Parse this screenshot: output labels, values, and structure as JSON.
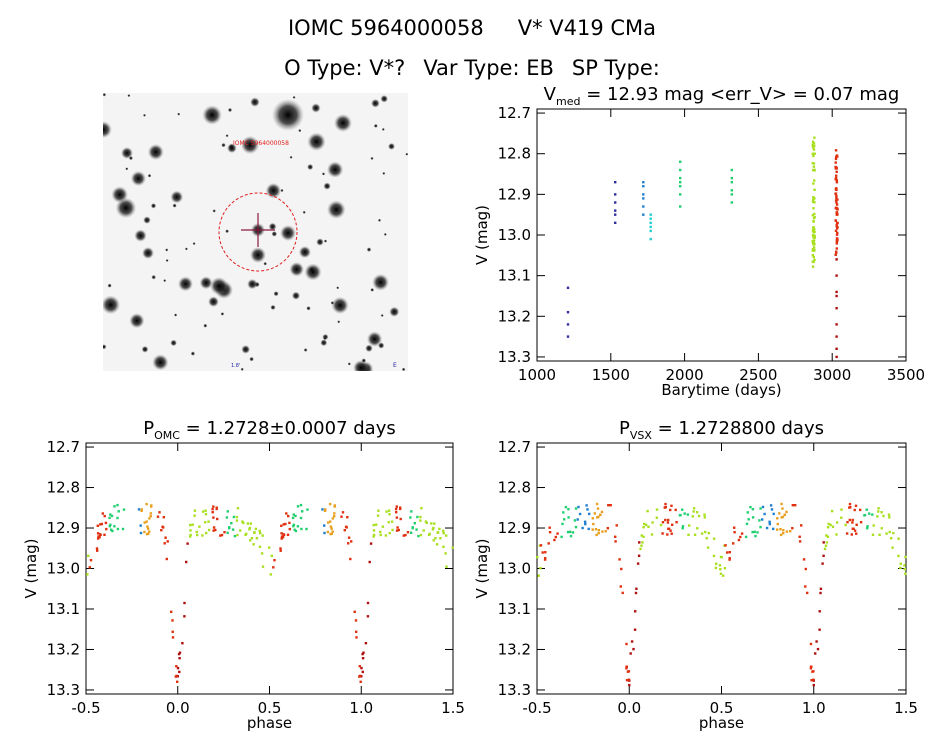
{
  "header": {
    "ids": [
      "IOMC 5964000058",
      "V* V419 CMa"
    ],
    "types": [
      "O Type: V*?",
      "Var Type: EB",
      "SP Type:"
    ]
  },
  "colors": {
    "c1": "#2f2f9f",
    "c2": "#1f7fd0",
    "c3": "#20d0d0",
    "c4": "#20d070",
    "c5": "#a8e020",
    "c6": "#e8a020",
    "c7": "#e03010",
    "c8": "#b01010",
    "circle": "#e02020",
    "cross": "#8b1a40"
  },
  "chart_data": [
    {
      "type": "image",
      "labels": [
        "IOMC 5964000058",
        "1.8'",
        "E"
      ],
      "marker": "circle-and-cross"
    },
    {
      "type": "scatter",
      "title": "V_med = 12.93 mag <err_V> = 0.07 mag",
      "title_parts": {
        "pre": "V",
        "sub": "med",
        "rest": " = 12.93 mag <err_V> = 0.07 mag"
      },
      "xlabel": "Barytime (days)",
      "ylabel": "V (mag)",
      "xlim": [
        1000,
        3500
      ],
      "ylim": [
        13.31,
        12.69
      ],
      "xticks": [
        1000,
        1500,
        2000,
        2500,
        3000,
        3500
      ],
      "yticks": [
        12.7,
        12.8,
        12.9,
        13.0,
        13.1,
        13.2,
        13.3
      ],
      "grid": false,
      "series": [
        {
          "color_key": "c1",
          "x": [
            1210,
            1210,
            1210,
            1210
          ],
          "y": [
            13.13,
            13.19,
            13.25,
            13.22
          ]
        },
        {
          "color_key": "c1",
          "x": [
            1530,
            1530,
            1530,
            1530,
            1530,
            1530
          ],
          "y": [
            12.87,
            12.9,
            12.92,
            12.94,
            12.95,
            12.97
          ]
        },
        {
          "color_key": "c2",
          "x": [
            1720,
            1720,
            1720,
            1720,
            1720,
            1720
          ],
          "y": [
            12.87,
            12.88,
            12.9,
            12.91,
            12.93,
            12.95
          ]
        },
        {
          "color_key": "c3",
          "x": [
            1770,
            1770,
            1770,
            1770,
            1770,
            1770
          ],
          "y": [
            12.95,
            12.96,
            12.97,
            12.98,
            12.99,
            13.01
          ]
        },
        {
          "color_key": "c4",
          "x": [
            1970,
            1970,
            1970,
            1970,
            1970,
            1970,
            1970
          ],
          "y": [
            12.82,
            12.84,
            12.86,
            12.87,
            12.88,
            12.9,
            12.93
          ]
        },
        {
          "color_key": "c4",
          "x": [
            2320,
            2320,
            2320,
            2320,
            2320,
            2320
          ],
          "y": [
            12.84,
            12.86,
            12.87,
            12.89,
            12.9,
            12.92
          ]
        },
        {
          "color_key": "c5",
          "band": {
            "x": 2875,
            "y0": 12.76,
            "y1": 13.08,
            "n": 70
          }
        },
        {
          "color_key": "c7",
          "band": {
            "x": 3030,
            "y0": 12.78,
            "y1": 13.05,
            "n": 60
          }
        },
        {
          "color_key": "c8",
          "x": [
            3030,
            3030,
            3030,
            3030,
            3030,
            3030,
            3030,
            3030,
            3030
          ],
          "y": [
            13.06,
            13.1,
            13.14,
            13.18,
            13.22,
            13.25,
            13.28,
            13.3,
            13.15
          ]
        }
      ]
    },
    {
      "type": "scatter",
      "title": "P_OMC = 1.2728±0.0007 days",
      "title_parts": {
        "pre": "P",
        "sub": "OMC",
        "rest": " = 1.2728±0.0007 days"
      },
      "xlabel": "phase",
      "ylabel": "V (mag)",
      "xlim": [
        -0.5,
        1.5
      ],
      "ylim": [
        13.31,
        12.69
      ],
      "xticks": [
        -0.5,
        0.0,
        0.5,
        1.0,
        1.5
      ],
      "yticks": [
        12.7,
        12.8,
        12.9,
        13.0,
        13.1,
        13.2,
        13.3
      ],
      "grid": false,
      "folded": true
    },
    {
      "type": "scatter",
      "title": "P_VSX = 1.2728800 days",
      "title_parts": {
        "pre": "P",
        "sub": "VSX",
        "rest": " = 1.2728800 days"
      },
      "xlabel": "phase",
      "ylabel": "V (mag)",
      "xlim": [
        -0.5,
        1.5
      ],
      "ylim": [
        13.31,
        12.69
      ],
      "xticks": [
        -0.5,
        0.0,
        0.5,
        1.0,
        1.5
      ],
      "yticks": [
        12.7,
        12.8,
        12.9,
        13.0,
        13.1,
        13.2,
        13.3
      ],
      "grid": false,
      "folded": true
    }
  ]
}
